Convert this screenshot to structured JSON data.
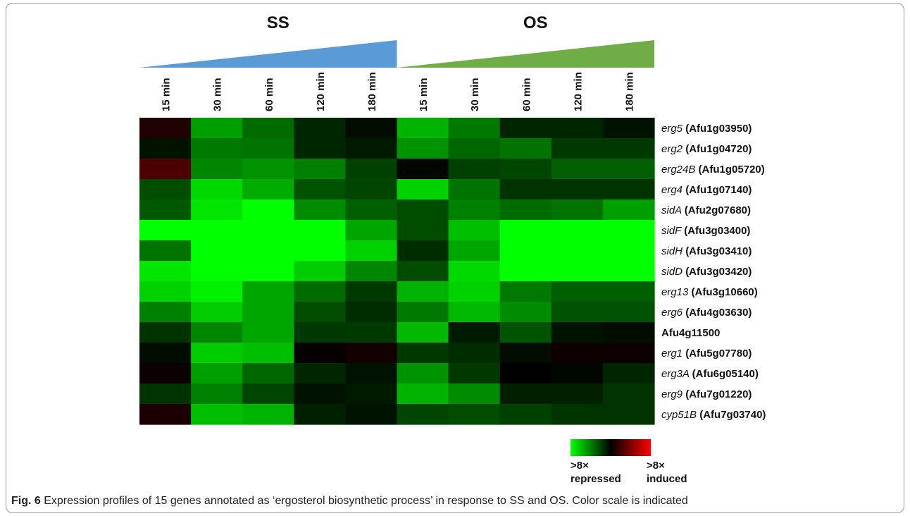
{
  "chart_data": {
    "type": "heatmap",
    "groups": [
      {
        "name": "SS",
        "color": "#5b9bd5"
      },
      {
        "name": "OS",
        "color": "#70ad47"
      }
    ],
    "columns": [
      "15 min",
      "30 min",
      "60 min",
      "120 min",
      "180 min",
      "15 min",
      "30 min",
      "60 min",
      "120 min",
      "180 min"
    ],
    "rows": [
      {
        "gene": "erg5",
        "id": "(Afu1g03950)",
        "values": [
          0.5,
          -2.5,
          -1.7,
          -0.6,
          -0.2,
          -2.8,
          -1.9,
          -0.6,
          -0.6,
          -0.3
        ]
      },
      {
        "gene": "erg2",
        "id": "(Afu1g04720)",
        "values": [
          -0.3,
          -1.9,
          -1.8,
          -0.6,
          -0.4,
          -2.3,
          -1.6,
          -1.8,
          -0.9,
          -0.9
        ]
      },
      {
        "gene": "erg24B",
        "id": "(Afu1g05720)",
        "values": [
          1.2,
          -2.1,
          -2.3,
          -2.0,
          -1.0,
          -0.1,
          -1.0,
          -1.1,
          -1.5,
          -1.5
        ]
      },
      {
        "gene": "erg4",
        "id": "(Afu1g07140)",
        "values": [
          -1.2,
          -3.4,
          -2.7,
          -1.3,
          -1.1,
          -3.3,
          -1.8,
          -0.8,
          -0.8,
          -0.8
        ]
      },
      {
        "gene": "sidA",
        "id": "(Afu2g07680)",
        "values": [
          -1.4,
          -3.6,
          -4.0,
          -2.2,
          -1.5,
          -1.2,
          -2.0,
          -1.7,
          -1.8,
          -2.5
        ]
      },
      {
        "gene": "sidF",
        "id": "(Afu3g03400)",
        "values": [
          -4.0,
          -4.0,
          -4.0,
          -4.0,
          -2.6,
          -1.2,
          -3.0,
          -4.0,
          -4.0,
          -4.0
        ]
      },
      {
        "gene": "sidH",
        "id": "(Afu3g03410)",
        "values": [
          -1.8,
          -4.0,
          -4.0,
          -4.0,
          -3.3,
          -0.7,
          -2.6,
          -4.0,
          -4.0,
          -4.0
        ]
      },
      {
        "gene": "sidD",
        "id": "(Afu3g03420)",
        "values": [
          -3.6,
          -4.0,
          -4.0,
          -3.2,
          -2.1,
          -1.2,
          -3.4,
          -4.0,
          -4.0,
          -4.0
        ]
      },
      {
        "gene": "erg13",
        "id": "(Afu3g10660)",
        "values": [
          -3.3,
          -3.8,
          -2.6,
          -1.7,
          -0.9,
          -2.8,
          -3.3,
          -1.9,
          -1.5,
          -1.5
        ]
      },
      {
        "gene": "erg6",
        "id": "(Afu4g03630)",
        "values": [
          -2.0,
          -3.2,
          -2.6,
          -1.2,
          -0.7,
          -1.9,
          -2.9,
          -2.2,
          -1.3,
          -1.3
        ]
      },
      {
        "gene": "",
        "id": "Afu4g11500",
        "values": [
          -0.8,
          -2.1,
          -2.6,
          -0.9,
          -0.9,
          -2.9,
          -0.4,
          -1.3,
          -0.3,
          -0.2
        ]
      },
      {
        "gene": "erg1",
        "id": "(Afu5g07780)",
        "values": [
          -0.2,
          -3.2,
          -3.0,
          0.1,
          0.3,
          -0.9,
          -0.7,
          -0.2,
          0.2,
          0.2
        ]
      },
      {
        "gene": "erg3A",
        "id": "(Afu6g05140)",
        "values": [
          0.2,
          -2.5,
          -1.6,
          -0.6,
          -0.3,
          -2.3,
          -0.9,
          0.0,
          -0.1,
          -0.6
        ]
      },
      {
        "gene": "erg9",
        "id": "(Afu7g01220)",
        "values": [
          -0.8,
          -2.0,
          -1.1,
          -0.3,
          -0.4,
          -2.8,
          -2.2,
          -0.5,
          -0.5,
          -0.8
        ]
      },
      {
        "gene": "cyp51B",
        "id": "(Afu7g03740)",
        "values": [
          0.4,
          -3.0,
          -2.8,
          -0.5,
          -0.3,
          -1.1,
          -1.2,
          -1.0,
          -0.8,
          -0.8
        ]
      }
    ],
    "color_scale": {
      "min": -4,
      "max": 4,
      "min_color": "#00ff00",
      "mid_color": "#000000",
      "max_color": "#ff0000",
      "min_label": ">8×",
      "min_sub": "repressed",
      "max_label": ">8×",
      "max_sub": "induced"
    }
  },
  "caption": {
    "label": "Fig. 6",
    "text": " Expression profiles of 15 genes annotated as ‘ergosterol biosynthetic process’ in response to SS and OS. Color scale is indicated"
  }
}
